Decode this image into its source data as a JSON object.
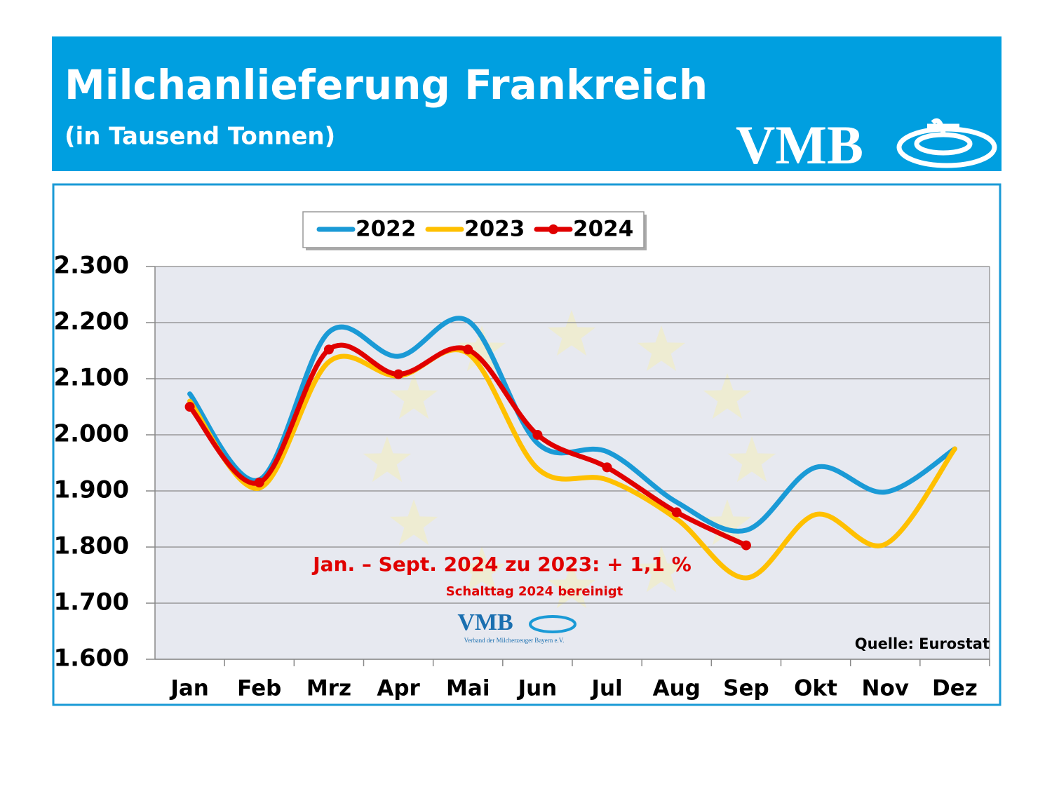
{
  "chart_data": {
    "type": "line",
    "title": "Milchanlieferung Frankreich",
    "subtitle": "(in Tausend Tonnen)",
    "logo_text": "VMB",
    "logo_subtext": "Verband der Milcherzeuger Bayern e.V.",
    "categories": [
      "Jan",
      "Feb",
      "Mrz",
      "Apr",
      "Mai",
      "Jun",
      "Jul",
      "Aug",
      "Sep",
      "Okt",
      "Nov",
      "Dez"
    ],
    "series": [
      {
        "name": "2022",
        "color": "#1a9ad6",
        "markers": false,
        "values": [
          2073,
          1920,
          2183,
          2140,
          2203,
          1985,
          1970,
          1880,
          1830,
          1942,
          1898,
          1975
        ]
      },
      {
        "name": "2023",
        "color": "#ffc000",
        "markers": false,
        "values": [
          2060,
          1905,
          2130,
          2105,
          2145,
          1940,
          1920,
          1850,
          1745,
          1858,
          1805,
          1975
        ]
      },
      {
        "name": "2024",
        "color": "#e00000",
        "markers": true,
        "values": [
          2050,
          1915,
          2152,
          2108,
          2152,
          2000,
          1942,
          1862,
          1803,
          null,
          null,
          null
        ]
      }
    ],
    "ylim": [
      1600,
      2300
    ],
    "yticks": [
      {
        "value": 1600,
        "label": "1.600"
      },
      {
        "value": 1700,
        "label": "1.700"
      },
      {
        "value": 1800,
        "label": "1.800"
      },
      {
        "value": 1900,
        "label": "1.900"
      },
      {
        "value": 2000,
        "label": "2.000"
      },
      {
        "value": 2100,
        "label": "2.100"
      },
      {
        "value": 2200,
        "label": "2.200"
      },
      {
        "value": 2300,
        "label": "2.300"
      }
    ],
    "grid": true,
    "legend": "top",
    "annotations": [
      "Jan. – Sept. 2024 zu 2023:  + 1,1 %",
      "Schalttag 2024 bereinigt"
    ],
    "source": "Quelle: Eurostat"
  }
}
